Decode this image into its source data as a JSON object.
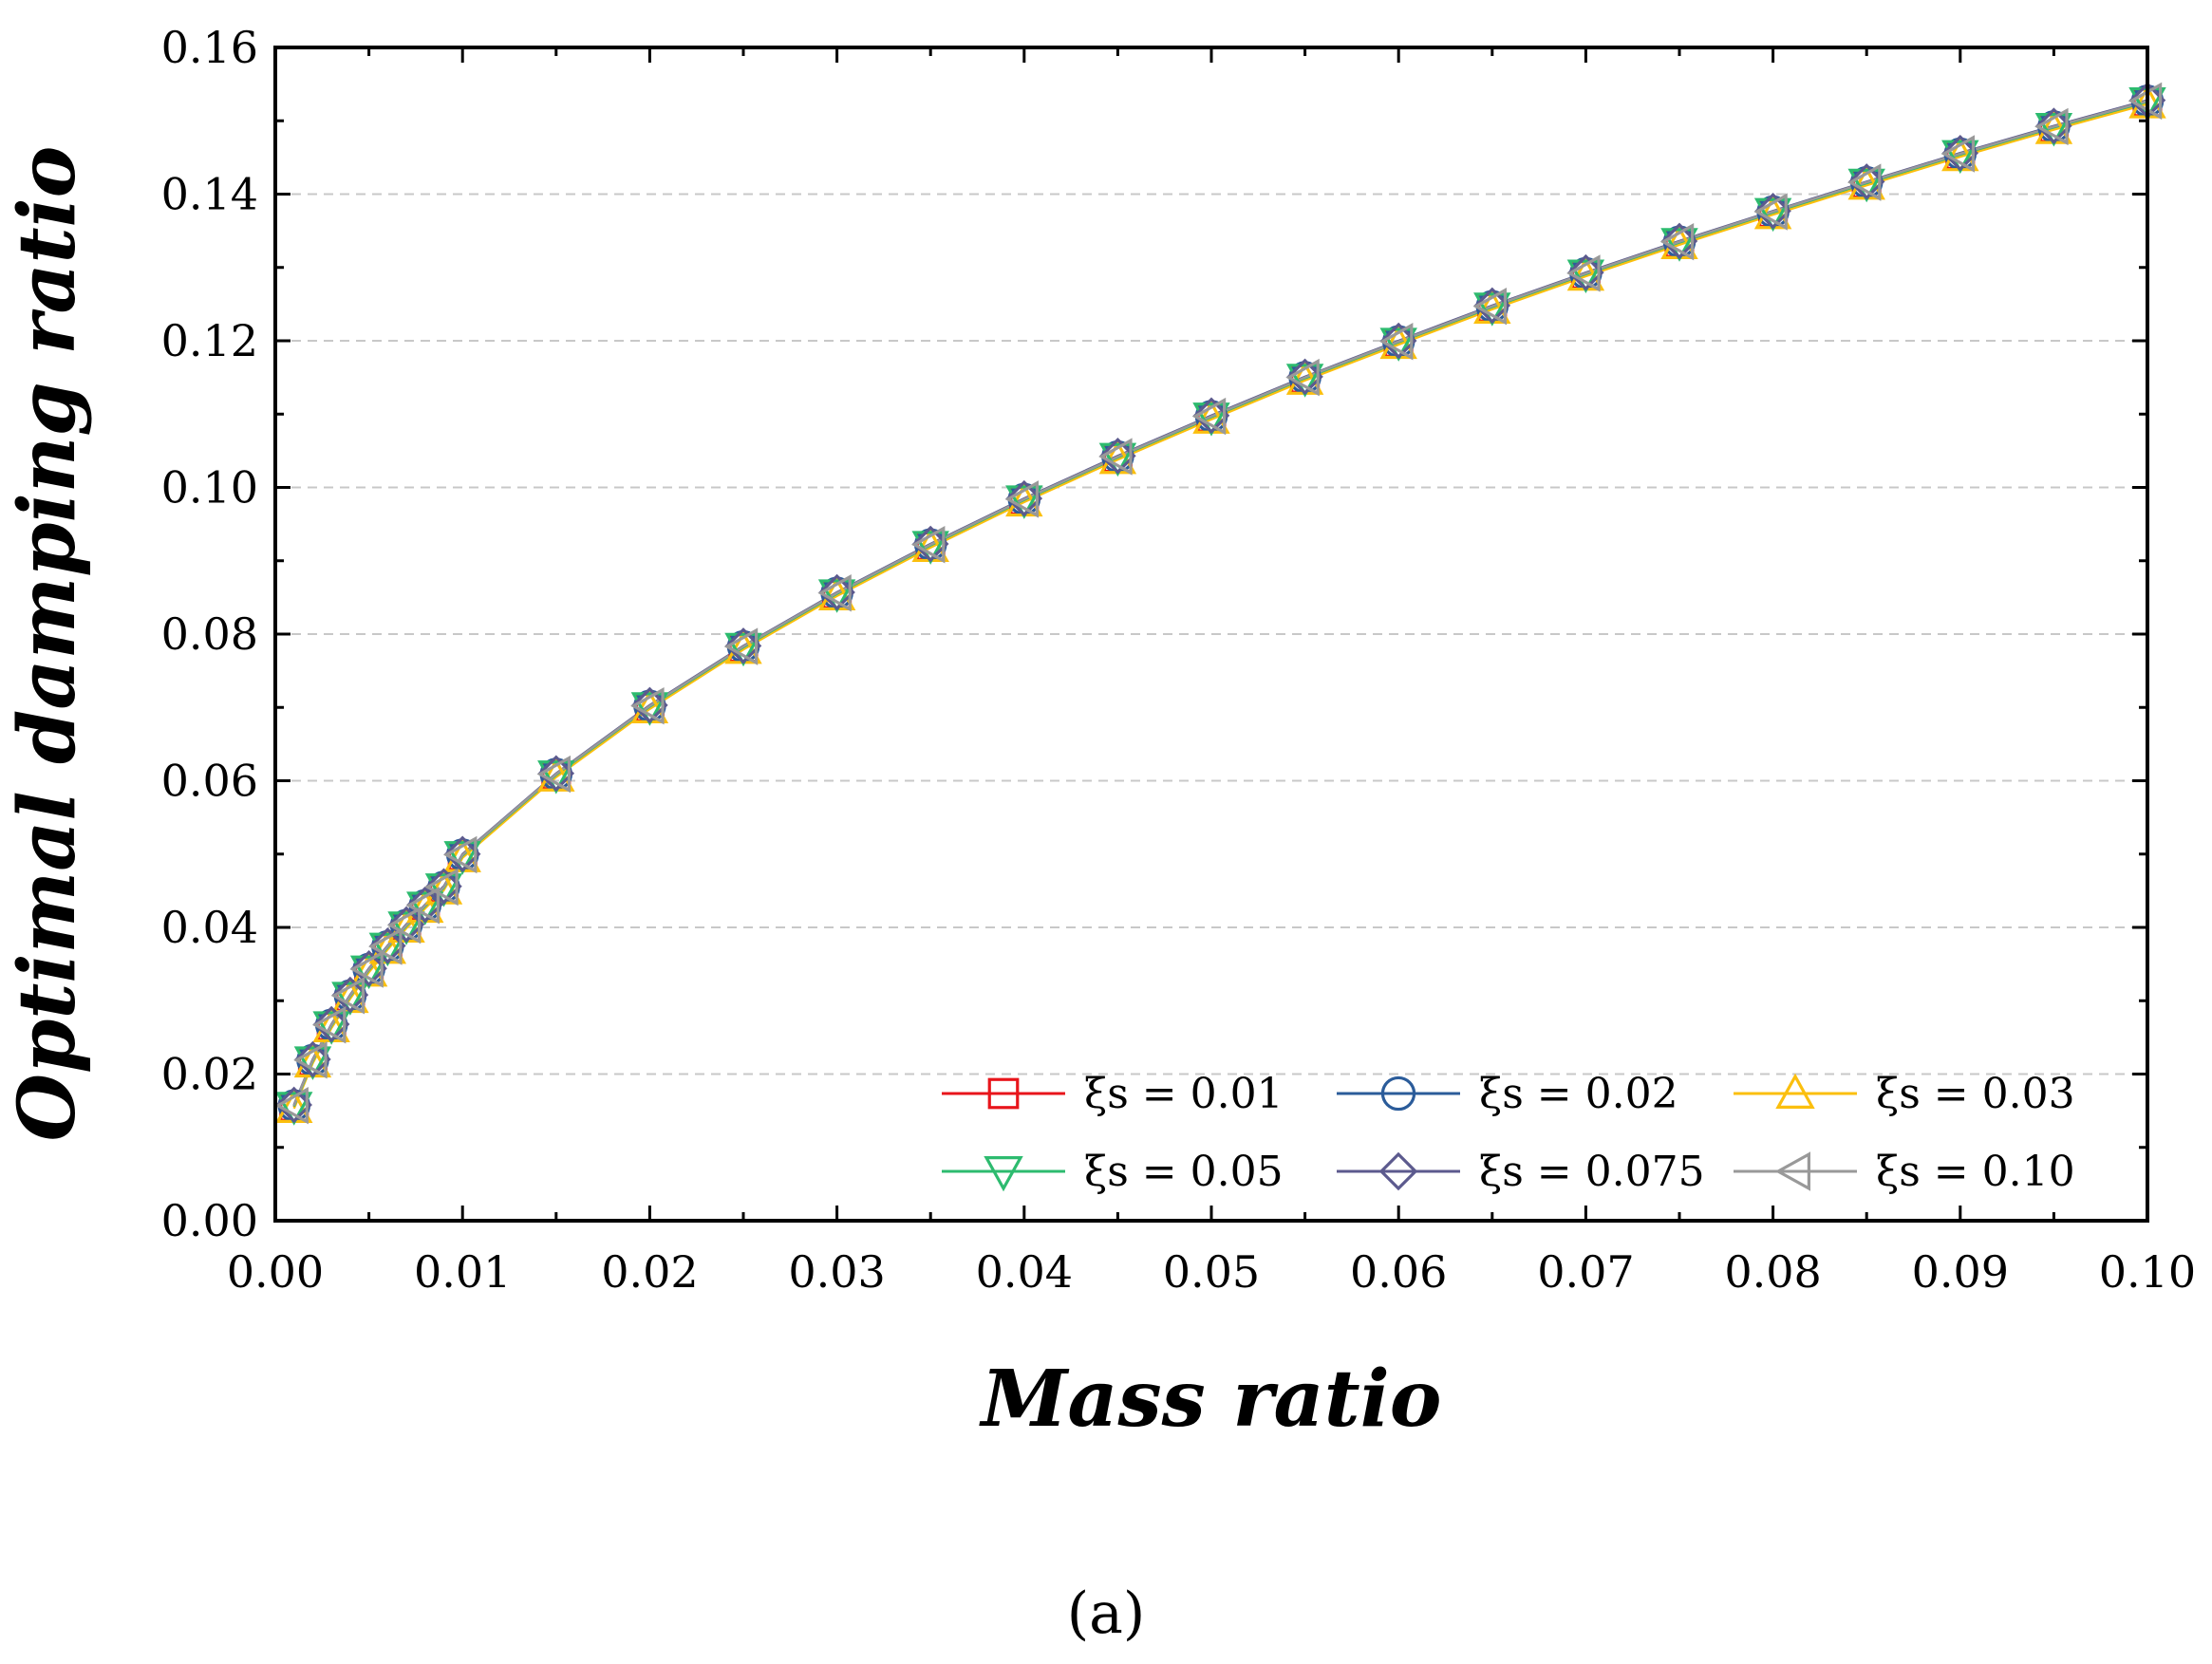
{
  "chart_data": {
    "type": "line",
    "title": "",
    "xlabel": "Mass ratio",
    "ylabel": "Optimal damping ratio",
    "xlim": [
      0.0,
      0.1
    ],
    "ylim": [
      0.0,
      0.16
    ],
    "xticks": [
      "0.00",
      "0.01",
      "0.02",
      "0.03",
      "0.04",
      "0.05",
      "0.06",
      "0.07",
      "0.08",
      "0.09",
      "0.10"
    ],
    "yticks": [
      "0.00",
      "0.02",
      "0.04",
      "0.06",
      "0.08",
      "0.10",
      "0.12",
      "0.14",
      "0.16"
    ],
    "grid": "horizontal dashed",
    "legend_position": "bottom-right",
    "x": [
      0.001,
      0.002,
      0.003,
      0.004,
      0.005,
      0.006,
      0.007,
      0.008,
      0.009,
      0.01,
      0.015,
      0.02,
      0.025,
      0.03,
      0.035,
      0.04,
      0.045,
      0.05,
      0.055,
      0.06,
      0.065,
      0.07,
      0.075,
      0.08,
      0.085,
      0.09,
      0.095,
      0.1
    ],
    "series": [
      {
        "name": "ξs = 0.01",
        "color": "#e8151b",
        "marker": "square",
        "values": [
          0.0155,
          0.0217,
          0.0265,
          0.0305,
          0.0341,
          0.0372,
          0.0401,
          0.0428,
          0.0453,
          0.0497,
          0.0607,
          0.07,
          0.0781,
          0.0854,
          0.092,
          0.0982,
          0.104,
          0.1095,
          0.1148,
          0.1197,
          0.1245,
          0.129,
          0.1333,
          0.1374,
          0.1414,
          0.1453,
          0.149,
          0.1525
        ]
      },
      {
        "name": "ξs = 0.02",
        "color": "#2b5c9a",
        "marker": "circle",
        "values": [
          0.0157,
          0.0219,
          0.0267,
          0.0307,
          0.0343,
          0.0374,
          0.0403,
          0.043,
          0.0455,
          0.0499,
          0.0609,
          0.0702,
          0.0783,
          0.0856,
          0.0922,
          0.0984,
          0.1042,
          0.1097,
          0.115,
          0.1199,
          0.1247,
          0.1292,
          0.1335,
          0.1376,
          0.1416,
          0.1455,
          0.1492,
          0.1527
        ]
      },
      {
        "name": "ξs = 0.03",
        "color": "#fbbf0e",
        "marker": "triangle-up",
        "values": [
          0.0153,
          0.0215,
          0.0263,
          0.0303,
          0.0339,
          0.037,
          0.0399,
          0.0426,
          0.0451,
          0.0495,
          0.0605,
          0.0698,
          0.0779,
          0.0852,
          0.0918,
          0.098,
          0.1038,
          0.1093,
          0.1146,
          0.1195,
          0.1243,
          0.1288,
          0.1331,
          0.1372,
          0.1412,
          0.1451,
          0.1488,
          0.1523
        ]
      },
      {
        "name": "ξs = 0.05",
        "color": "#2dbb6f",
        "marker": "triangle-down",
        "values": [
          0.0156,
          0.0218,
          0.0266,
          0.0306,
          0.0342,
          0.0373,
          0.0402,
          0.0429,
          0.0454,
          0.0498,
          0.0608,
          0.0701,
          0.0782,
          0.0855,
          0.0921,
          0.0983,
          0.1041,
          0.1096,
          0.1149,
          0.1198,
          0.1246,
          0.1291,
          0.1334,
          0.1375,
          0.1415,
          0.1454,
          0.1491,
          0.1526
        ]
      },
      {
        "name": "ξs = 0.075",
        "color": "#5c5a8e",
        "marker": "diamond",
        "values": [
          0.0158,
          0.022,
          0.0268,
          0.0308,
          0.0344,
          0.0375,
          0.0404,
          0.0431,
          0.0456,
          0.05,
          0.061,
          0.0703,
          0.0784,
          0.0857,
          0.0923,
          0.0985,
          0.1043,
          0.1098,
          0.1151,
          0.12,
          0.1248,
          0.1293,
          0.1336,
          0.1377,
          0.1417,
          0.1456,
          0.1493,
          0.1528
        ]
      },
      {
        "name": "ξs = 0.10",
        "color": "#999999",
        "marker": "triangle-left",
        "values": [
          0.0157,
          0.0219,
          0.0267,
          0.0307,
          0.0343,
          0.0374,
          0.0403,
          0.043,
          0.0455,
          0.0499,
          0.0609,
          0.0702,
          0.0783,
          0.0856,
          0.0922,
          0.0984,
          0.1042,
          0.1097,
          0.115,
          0.1199,
          0.1247,
          0.1292,
          0.1335,
          0.1376,
          0.1416,
          0.1455,
          0.1492,
          0.1527
        ]
      }
    ]
  },
  "caption": "(a)"
}
